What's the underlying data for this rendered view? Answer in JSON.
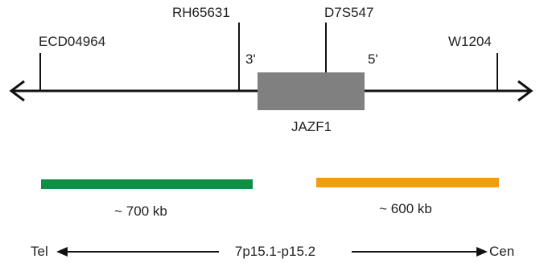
{
  "markers": [
    {
      "id": "ecd",
      "label": "ECD04964"
    },
    {
      "id": "rh",
      "label": "RH65631"
    },
    {
      "id": "d7s",
      "label": "D7S547"
    },
    {
      "id": "w",
      "label": "W1204"
    }
  ],
  "gene": {
    "name": "JAZF1",
    "end_3": "3'",
    "end_5": "5'"
  },
  "regions": [
    {
      "id": "left",
      "label": "~ 700 kb",
      "color": "#0f8f45"
    },
    {
      "id": "right",
      "label": "~ 600 kb",
      "color": "#f39b13"
    }
  ],
  "axis": {
    "left": "Tel",
    "center": "7p15.1-p15.2",
    "right": "Cen"
  },
  "colors": {
    "line": "#111111",
    "gene_box": "#808080"
  }
}
